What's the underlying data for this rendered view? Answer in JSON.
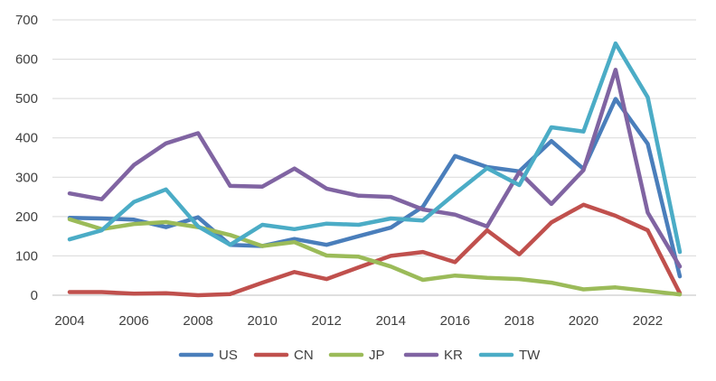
{
  "chart_data": {
    "type": "line",
    "title": "",
    "xlabel": "",
    "ylabel": "",
    "x": [
      2004,
      2005,
      2006,
      2007,
      2008,
      2009,
      2010,
      2011,
      2012,
      2013,
      2014,
      2015,
      2016,
      2017,
      2018,
      2019,
      2020,
      2021,
      2022,
      2023
    ],
    "x_tick_labels": [
      "2004",
      "2006",
      "2008",
      "2010",
      "2012",
      "2014",
      "2016",
      "2018",
      "2020",
      "2022"
    ],
    "y_tick_labels": [
      "0",
      "100",
      "200",
      "300",
      "400",
      "500",
      "600",
      "700"
    ],
    "ylim": [
      0,
      700
    ],
    "grid": "horizontal",
    "legend_position": "bottom",
    "series": [
      {
        "name": "US",
        "color": "#4a7ebb",
        "values": [
          197,
          195,
          192,
          173,
          198,
          128,
          125,
          143,
          128,
          150,
          172,
          225,
          354,
          326,
          315,
          392,
          321,
          499,
          385,
          48
        ]
      },
      {
        "name": "CN",
        "color": "#c0504d",
        "values": [
          8,
          8,
          4,
          5,
          0,
          3,
          32,
          59,
          41,
          71,
          100,
          110,
          84,
          165,
          104,
          185,
          230,
          202,
          165,
          5
        ]
      },
      {
        "name": "JP",
        "color": "#9bbb59",
        "values": [
          193,
          168,
          181,
          186,
          173,
          153,
          125,
          135,
          101,
          98,
          73,
          39,
          50,
          44,
          41,
          32,
          15,
          20,
          11,
          2
        ]
      },
      {
        "name": "KR",
        "color": "#8064a2",
        "values": [
          259,
          244,
          331,
          386,
          412,
          278,
          276,
          322,
          271,
          253,
          250,
          218,
          205,
          175,
          313,
          232,
          318,
          573,
          210,
          73
        ]
      },
      {
        "name": "TW",
        "color": "#4bacc6",
        "values": [
          142,
          165,
          237,
          269,
          175,
          128,
          179,
          168,
          182,
          179,
          195,
          190,
          258,
          323,
          280,
          427,
          416,
          640,
          503,
          110
        ]
      }
    ]
  }
}
